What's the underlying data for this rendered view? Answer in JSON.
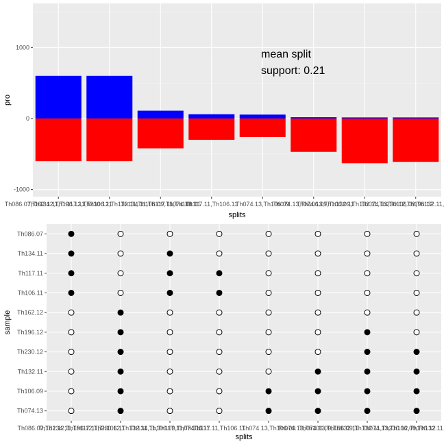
{
  "chart_data": [
    {
      "type": "bar",
      "subtype": "stacked-diverging",
      "xlabel": "splits",
      "ylabel": "pro",
      "ylim": [
        -1100,
        1620
      ],
      "yticks": [
        -1000,
        0,
        1000
      ],
      "grid": true,
      "annotation_lines": [
        "mean split",
        "support: 0.21"
      ],
      "categories": [
        "Th086.07,Th134.11,Th117.11,Th106.11",
        "Th162.12,Th196.12,Th230.12,Th132.11,Th106.09,Th074.13",
        "Th134.11,Th117.11,Th106.11",
        "Th117.11,Th106.11",
        "Th074.13,Th106.09",
        "Th074.13,Th106.09,Th132.11",
        "Th074.13,Th106.09,Th132.11,Th230.12,Th196.12",
        "Th074.13,Th106.09,Th132.11,Th230.12"
      ],
      "series": [
        {
          "color": "#0000ff",
          "values": [
            600,
            600,
            110,
            60,
            55,
            18,
            15,
            15
          ]
        },
        {
          "color": "#ff0000",
          "values": [
            -600,
            -600,
            -420,
            -300,
            -260,
            -470,
            -630,
            -610
          ]
        }
      ]
    },
    {
      "type": "scatter",
      "subtype": "membership-matrix",
      "xlabel": "splits",
      "ylabel": "sample",
      "samples": [
        "Th086.07",
        "Th134.11",
        "Th117.11",
        "Th106.11",
        "Th162.12",
        "Th196.12",
        "Th230.12",
        "Th132.11",
        "Th106.09",
        "Th074.13"
      ],
      "membership": [
        [
          1,
          0,
          0,
          0,
          0,
          0,
          0,
          0
        ],
        [
          1,
          0,
          1,
          0,
          0,
          0,
          0,
          0
        ],
        [
          1,
          0,
          1,
          1,
          0,
          0,
          0,
          0
        ],
        [
          1,
          0,
          1,
          1,
          0,
          0,
          0,
          0
        ],
        [
          0,
          1,
          0,
          0,
          0,
          0,
          0,
          0
        ],
        [
          0,
          1,
          0,
          0,
          0,
          0,
          1,
          0
        ],
        [
          0,
          1,
          0,
          0,
          0,
          0,
          1,
          1
        ],
        [
          0,
          1,
          0,
          0,
          0,
          1,
          1,
          1
        ],
        [
          0,
          1,
          0,
          0,
          1,
          1,
          1,
          1
        ],
        [
          0,
          1,
          0,
          0,
          1,
          1,
          1,
          1
        ]
      ],
      "filled_color": "#000000",
      "empty_color": "#ffffff"
    }
  ]
}
